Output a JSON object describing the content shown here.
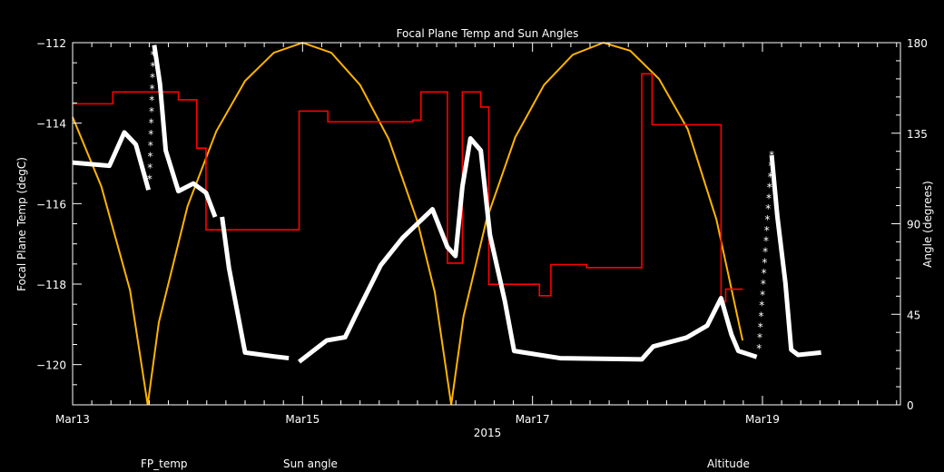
{
  "chart_data": {
    "type": "line",
    "title": "Focal Plane Temp and Sun Angles",
    "xlabel": "2015",
    "ylabel_left": "Focal Plane Temp (degC)",
    "ylabel_right": "Angle (degrees)",
    "xlim": [
      "2015-03-13",
      "2015-03-20.2"
    ],
    "ylim_left": [
      -121,
      -112
    ],
    "ylim_right": [
      0,
      180
    ],
    "x_ticks": [
      {
        "day": 13,
        "label": "Mar13"
      },
      {
        "day": 15,
        "label": "Mar15"
      },
      {
        "day": 17,
        "label": "Mar17"
      },
      {
        "day": 19,
        "label": "Mar19"
      }
    ],
    "y_ticks_left": [
      {
        "value": -112,
        "label": "−112"
      },
      {
        "value": -114,
        "label": "−114"
      },
      {
        "value": -116,
        "label": "−116"
      },
      {
        "value": -118,
        "label": "−118"
      },
      {
        "value": -120,
        "label": "−120"
      }
    ],
    "y_ticks_right": [
      {
        "value": 180,
        "label": "180"
      },
      {
        "value": 135,
        "label": "135"
      },
      {
        "value": 90,
        "label": "90"
      },
      {
        "value": 45,
        "label": "45"
      },
      {
        "value": 0,
        "label": "0"
      }
    ],
    "x_units": "day of March 2015",
    "grid": false,
    "legend_placement": "bottom",
    "background": "#000000",
    "series": [
      {
        "name": "FP_temp",
        "axis": "left",
        "color": "#ffffff",
        "marker": "asterisk",
        "points": [
          [
            13.0,
            -114.98
          ],
          [
            13.32,
            -115.06
          ],
          [
            13.45,
            -114.23
          ],
          [
            13.55,
            -114.53
          ],
          [
            13.66,
            -115.66
          ],
          null,
          [
            13.67,
            -115.4
          ],
          [
            13.7,
            -112.3
          ],
          null,
          [
            13.71,
            -112.06
          ],
          [
            13.76,
            -113.03
          ],
          [
            13.81,
            -114.68
          ],
          [
            13.92,
            -115.69
          ],
          [
            14.05,
            -115.5
          ],
          [
            14.16,
            -115.73
          ],
          [
            14.24,
            -116.33
          ],
          null,
          [
            14.3,
            -116.33
          ],
          [
            14.36,
            -117.6
          ],
          [
            14.5,
            -119.7
          ],
          [
            14.76,
            -119.8
          ],
          [
            14.88,
            -119.84
          ],
          null,
          [
            14.97,
            -119.93
          ],
          [
            15.21,
            -119.4
          ],
          [
            15.37,
            -119.32
          ],
          [
            15.47,
            -118.73
          ],
          [
            15.68,
            -117.53
          ],
          [
            15.87,
            -116.85
          ],
          [
            16.13,
            -116.14
          ],
          [
            16.26,
            -117.08
          ],
          [
            16.33,
            -117.3
          ],
          [
            16.39,
            -115.58
          ],
          [
            16.46,
            -114.38
          ],
          [
            16.55,
            -114.68
          ],
          [
            16.63,
            -116.78
          ],
          [
            16.76,
            -118.43
          ],
          [
            16.84,
            -119.66
          ],
          [
            17.24,
            -119.84
          ],
          [
            17.95,
            -119.87
          ],
          [
            18.05,
            -119.55
          ],
          [
            18.34,
            -119.33
          ],
          [
            18.52,
            -119.03
          ],
          [
            18.64,
            -118.35
          ],
          [
            18.73,
            -119.25
          ],
          [
            18.79,
            -119.66
          ],
          [
            18.95,
            -119.81
          ],
          null,
          [
            18.97,
            -119.6
          ],
          [
            19.08,
            -114.8
          ],
          null,
          [
            19.08,
            -114.8
          ],
          [
            19.13,
            -116.33
          ],
          [
            19.2,
            -117.98
          ],
          [
            19.25,
            -119.63
          ],
          [
            19.31,
            -119.76
          ],
          [
            19.51,
            -119.7
          ]
        ]
      },
      {
        "name": "Sun angle",
        "axis": "right",
        "color": "#ff0000",
        "step": true,
        "points": [
          [
            13.0,
            149.6
          ],
          [
            13.35,
            155.5
          ],
          [
            13.92,
            151.6
          ],
          [
            14.08,
            127.6
          ],
          [
            14.16,
            87
          ],
          [
            14.97,
            146
          ],
          [
            15.22,
            140.7
          ],
          [
            15.96,
            141.5
          ],
          [
            16.03,
            155.5
          ],
          [
            16.26,
            70.4
          ],
          [
            16.39,
            155.5
          ],
          [
            16.55,
            148
          ],
          [
            16.62,
            59.9
          ],
          [
            17.06,
            54.2
          ],
          [
            17.16,
            69.7
          ],
          [
            17.47,
            68.2
          ],
          [
            17.95,
            164.5
          ],
          [
            18.04,
            139.2
          ],
          [
            18.64,
            51.2
          ],
          [
            18.68,
            57.5
          ],
          [
            18.83,
            57.5
          ]
        ]
      },
      {
        "name": "Altitude",
        "axis": "right",
        "color": "#ffb400",
        "points": [
          [
            13.0,
            143
          ],
          [
            13.25,
            108.5
          ],
          [
            13.5,
            56.8
          ],
          [
            13.653,
            0
          ],
          [
            13.75,
            41
          ],
          [
            14.0,
            98.8
          ],
          [
            14.25,
            136
          ],
          [
            14.5,
            161
          ],
          [
            14.75,
            175
          ],
          [
            15.0,
            180
          ],
          [
            15.25,
            175
          ],
          [
            15.5,
            159
          ],
          [
            15.75,
            132
          ],
          [
            16.0,
            91
          ],
          [
            16.15,
            56
          ],
          [
            16.293,
            0
          ],
          [
            16.4,
            44
          ],
          [
            16.6,
            92
          ],
          [
            16.85,
            133
          ],
          [
            17.1,
            159
          ],
          [
            17.35,
            174
          ],
          [
            17.617,
            180
          ],
          [
            17.85,
            176
          ],
          [
            18.1,
            162
          ],
          [
            18.35,
            137
          ],
          [
            18.6,
            92
          ],
          [
            18.827,
            32
          ]
        ]
      }
    ]
  }
}
